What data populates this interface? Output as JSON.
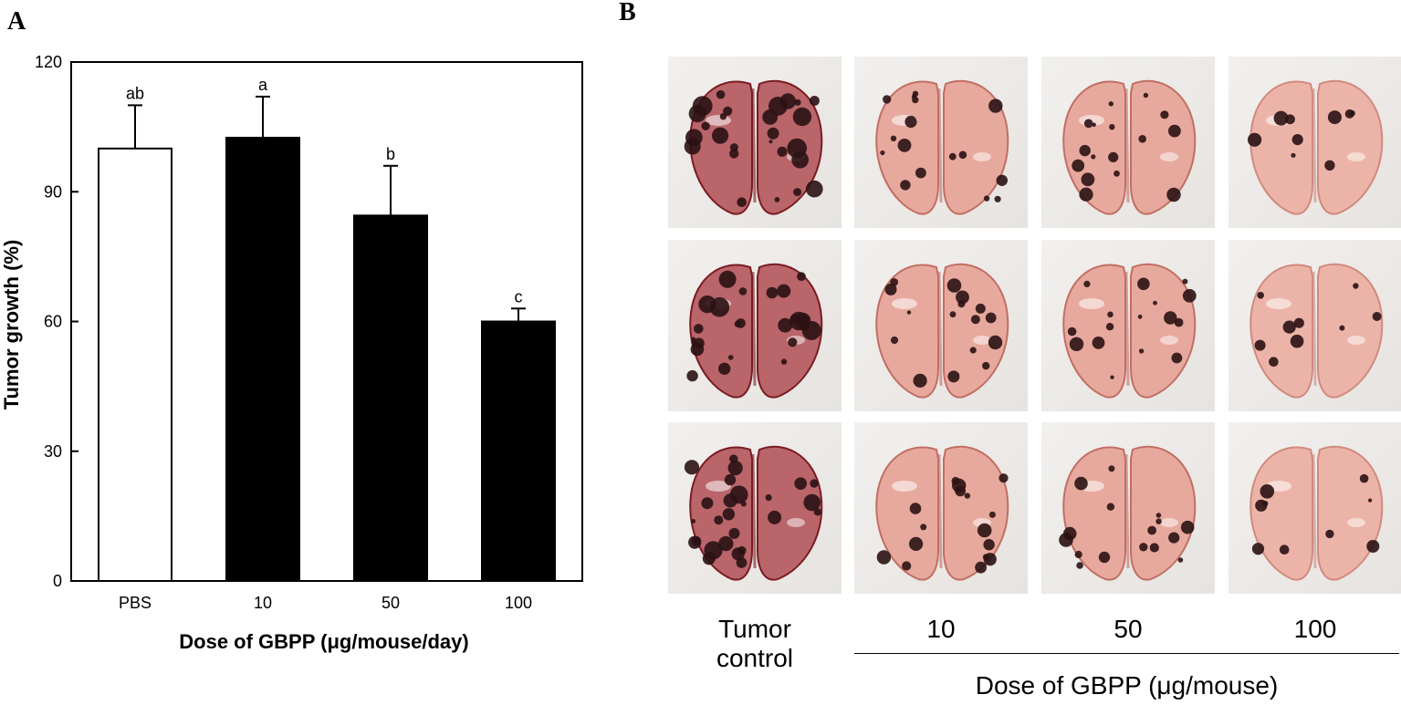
{
  "panels": {
    "a_label": "A",
    "b_label": "B"
  },
  "chart_data": {
    "type": "bar",
    "categories": [
      "PBS",
      "10",
      "50",
      "100"
    ],
    "values": [
      100,
      102.5,
      84.5,
      60
    ],
    "errors": [
      10,
      9.5,
      11.5,
      3
    ],
    "significance": [
      "ab",
      "a",
      "b",
      "c"
    ],
    "bar_colors": [
      "#ffffff",
      "#000000",
      "#000000",
      "#000000"
    ],
    "xlabel": "Dose of GBPP (μg/mouse/day)",
    "ylabel": "Tumor growth (%)",
    "ylim": [
      0,
      120
    ],
    "yticks": [
      "0",
      "30",
      "60",
      "90",
      "120"
    ],
    "grid": false,
    "legend": "none"
  },
  "photo_panel": {
    "columns": [
      {
        "label_line1": "Tumor",
        "label_line2": "control",
        "severity": "high"
      },
      {
        "label_line1": "10",
        "label_line2": "",
        "severity": "medium"
      },
      {
        "label_line1": "50",
        "label_line2": "",
        "severity": "medium"
      },
      {
        "label_line1": "100",
        "label_line2": "",
        "severity": "low"
      }
    ],
    "rows": 3,
    "group_label": "Dose of GBPP (μg/mouse)"
  }
}
